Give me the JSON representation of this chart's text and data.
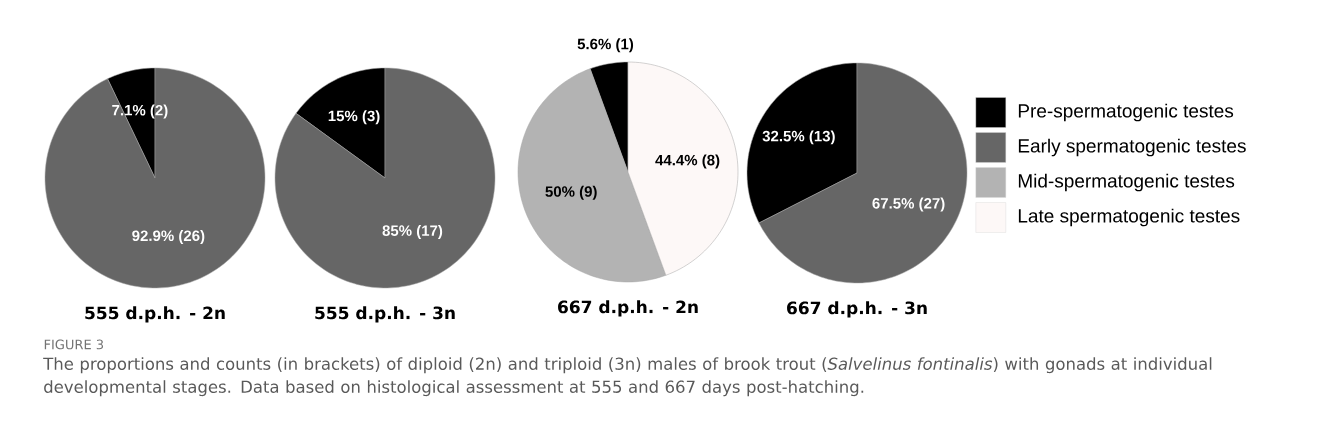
{
  "chart_data": [
    {
      "type": "pie",
      "title": "555 d.p.h. - 2n",
      "categories": [
        null,
        null,
        null,
        null
      ],
      "values": [
        7.1,
        92.9,
        0,
        0
      ],
      "colors": [
        "#000000",
        "#666666",
        "#b3b3b3",
        "#fdf8f7"
      ],
      "value_labels": [
        "7.1% (2)",
        "92.9% (26)",
        null,
        null
      ],
      "annotations": [
        "FIGURE 3",
        "The proportions and counts (in brackets) of diploid (2n) and triploid (3n) males of brook trout (*Salvelinus fontinalis*) with gonads at individual developmental stages. Data based on histological assessment at 555 and 667 days post-hatching."
      ]
    },
    {
      "type": "pie",
      "title": "555 d.p.h. - 3n",
      "categories": [
        null,
        null,
        null,
        null
      ],
      "values": [
        15,
        85,
        0,
        0
      ],
      "colors": [
        "#000000",
        "#666666",
        "#b3b3b3",
        "#fdf8f7"
      ],
      "value_labels": [
        "15% (3)",
        "85% (17)",
        null,
        null
      ]
    },
    {
      "type": "pie",
      "title": "667 d.p.h. - 2n",
      "categories": [
        null,
        null,
        null,
        null
      ],
      "values": [
        5.6,
        0,
        50,
        44.4
      ],
      "colors": [
        "#000000",
        "#666666",
        "#b3b3b3",
        "#fdf8f7"
      ],
      "value_labels": [
        "5.6% (1)",
        null,
        "50% (9)",
        "44.4% (8)"
      ]
    },
    {
      "type": "pie",
      "title": "667 d.p.h. - 3n",
      "categories": [
        "Pre-spermatogenic testes",
        "Early spermatogenic testes",
        "Mid-spermatogenic testes",
        "Late spermatogenic testes"
      ],
      "values": [
        32.5,
        67.5,
        0,
        0
      ],
      "colors": [
        "#000000",
        "#666666",
        "#b3b3b3",
        "#fdf8f7"
      ],
      "value_labels": [
        "32.5% (13)",
        "67.5% (27)",
        null,
        null
      ],
      "legend": "right"
    }
  ]
}
